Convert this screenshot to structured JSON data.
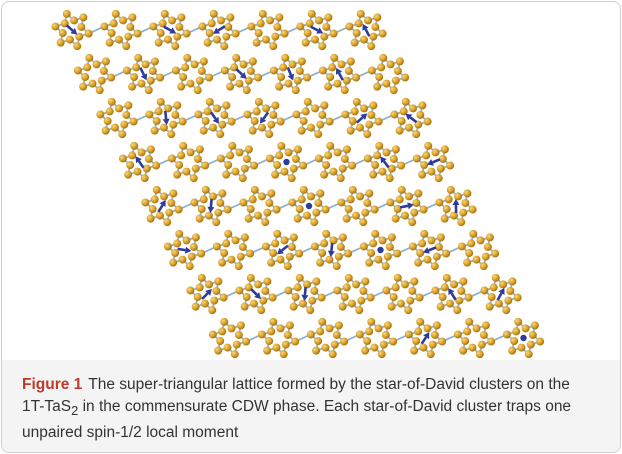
{
  "caption": {
    "label": "Figure 1",
    "text_before": "The super-triangular lattice formed by the star-of-David clusters on the 1T-TaS",
    "subscript": "2",
    "text_after": " in the commensurate CDW phase. Each star-of-David cluster traps one unpaired spin-1/2 local moment"
  }
}
